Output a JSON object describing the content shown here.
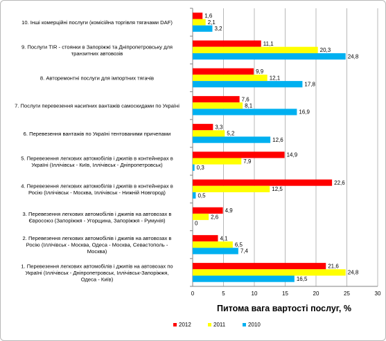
{
  "chart_data": {
    "type": "bar",
    "orientation": "horizontal",
    "title": "",
    "xlabel": "Питома вага вартості послуг, %",
    "ylabel": "",
    "xlim": [
      0,
      30
    ],
    "x_ticks": [
      0,
      5,
      10,
      15,
      20,
      25,
      30
    ],
    "grid": true,
    "legend_position": "bottom",
    "categories": [
      "1. Перевезення  легкових автомобілів і джипів на автовозах по Україні  (Іллічівськ - Дніпропетровськ, Іллічівськ-Запоріжжя, Одеса - Київ)",
      "2. Перевезення  легкових автомобілів і джипів на автовозах в Росію (Іллічівськ - Москва, Одеса - Москва, Севастополь - Москва)",
      "3. Перевезення  легкових автомобілів і джипів на автовозах в Євросоюз (Запоріжжя - Угорщина, Запоріжжя - Румунія)",
      "4. Перевезення  легкових автомобілів і джипів  в контейнерах в Росію (Іллічівськ - Москва, Іллічівськ - Нижній Новгород)",
      "5. Перевезення  легкових автомобілів і джипів  в контейнерах  в Україні (Іллічівськ - Київ, Іллічівськ - Дніпропетровськ)",
      "6. Перевезення  вантажів по Україні тентованими причепами",
      "7. Послуги перевезення  насипних вантажів самоскидами по Україні",
      "8. Авторемонтні  послуги для імпортних тягачів",
      "9. Послуги TIR - стоянки в Запоріжжі та Дніпропетровську для транзитних автовозів",
      "10. Інші комерційні послуги (комісійна торгівля тягачами DAF)"
    ],
    "series": [
      {
        "name": "2012",
        "color": "#ff0000",
        "values": [
          21.6,
          4.1,
          4.9,
          22.6,
          14.9,
          3.3,
          7.6,
          9.9,
          11.1,
          1.6
        ]
      },
      {
        "name": "2011",
        "color": "#ffff00",
        "values": [
          24.8,
          6.5,
          2.6,
          12.5,
          7.9,
          5.2,
          8.1,
          12.1,
          20.3,
          2.1
        ]
      },
      {
        "name": "2010",
        "color": "#00b0f0",
        "values": [
          16.5,
          7.4,
          0,
          0.5,
          0.3,
          12.6,
          16.9,
          17.8,
          24.8,
          3.2
        ]
      }
    ],
    "value_labels": [
      [
        "21,6",
        "4,1",
        "4,9",
        "22,6",
        "14,9",
        "3,3",
        "7,6",
        "9,9",
        "11,1",
        "1,6"
      ],
      [
        "24,8",
        "6,5",
        "2,6",
        "12,5",
        "7,9",
        "5,2",
        "8,1",
        "12,1",
        "20,3",
        "2,1"
      ],
      [
        "16,5",
        "7,4",
        "0",
        "0,5",
        "0,3",
        "12,6",
        "16,9",
        "17,8",
        "24,8",
        "3,2"
      ]
    ]
  }
}
